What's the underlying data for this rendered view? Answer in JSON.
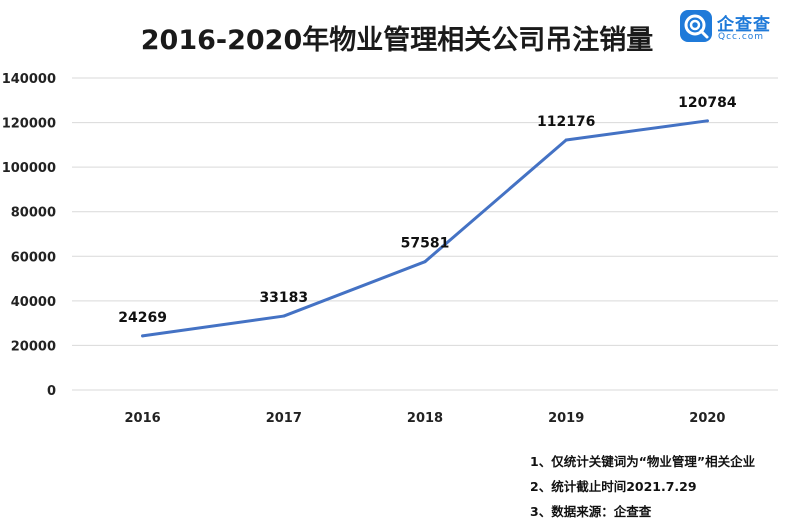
{
  "chart_data": {
    "type": "line",
    "title": "2016-2020年物业管理相关公司吊注销量",
    "categories": [
      "2016",
      "2017",
      "2018",
      "2019",
      "2020"
    ],
    "series": [
      {
        "values": [
          24269,
          33183,
          57581,
          112176,
          120784
        ]
      }
    ],
    "data_labels": [
      "24269",
      "33183",
      "57581",
      "112176",
      "120784"
    ],
    "yticks": [
      "0",
      "20000",
      "40000",
      "60000",
      "80000",
      "100000",
      "120000",
      "140000"
    ],
    "ylim": [
      0,
      140000
    ],
    "grid": true,
    "line_color": "#4472c4"
  },
  "logo": {
    "name": "企查查",
    "domain": "Qcc.com",
    "color": "#1f7ad9",
    "icon": "qcc-logo-icon"
  },
  "notes": [
    "1、仅统计关键词为“物业管理”相关企业",
    "2、统计截止时间2021.7.29",
    "3、数据来源：企查查"
  ]
}
